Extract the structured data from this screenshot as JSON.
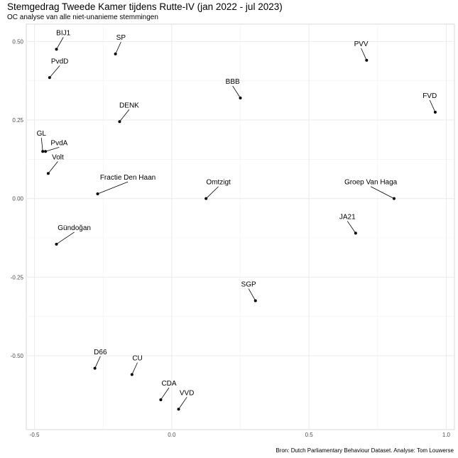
{
  "chart_data": {
    "type": "scatter",
    "title": "Stemgedrag Tweede Kamer tijdens Rutte-IV (jan 2022 - jul 2023)",
    "subtitle": "OC analyse van alle niet-unanieme stemmingen",
    "caption": "Bron: Dutch Parliamentary Behaviour Dataset. Analyse: Tom Louwerse",
    "xlabel": "",
    "ylabel": "",
    "xlim": [
      -0.53,
      1.03
    ],
    "ylim": [
      -0.735,
      0.555
    ],
    "x_ticks": [
      -0.5,
      0.0,
      0.5,
      1.0
    ],
    "x_tick_labels": [
      "-0.5",
      "0.0",
      "0.5",
      "1.0"
    ],
    "y_ticks": [
      -0.5,
      -0.25,
      0.0,
      0.25,
      0.5
    ],
    "y_tick_labels": [
      "-0.50",
      "-0.25",
      "0.00",
      "0.25",
      "0.50"
    ],
    "grid": true,
    "points": [
      {
        "label": "BIJ1",
        "x": -0.42,
        "y": 0.475,
        "lx": -0.395,
        "ly": 0.52,
        "anchor": "middle"
      },
      {
        "label": "SP",
        "x": -0.205,
        "y": 0.46,
        "lx": -0.185,
        "ly": 0.505,
        "anchor": "middle"
      },
      {
        "label": "PvdD",
        "x": -0.445,
        "y": 0.385,
        "lx": -0.408,
        "ly": 0.43,
        "anchor": "middle"
      },
      {
        "label": "PVV",
        "x": 0.71,
        "y": 0.44,
        "lx": 0.69,
        "ly": 0.485,
        "anchor": "middle"
      },
      {
        "label": "BBB",
        "x": 0.25,
        "y": 0.32,
        "lx": 0.222,
        "ly": 0.365,
        "anchor": "middle"
      },
      {
        "label": "FVD",
        "x": 0.96,
        "y": 0.275,
        "lx": 0.94,
        "ly": 0.32,
        "anchor": "middle"
      },
      {
        "label": "DENK",
        "x": -0.19,
        "y": 0.245,
        "lx": -0.155,
        "ly": 0.29,
        "anchor": "middle"
      },
      {
        "label": "GL",
        "x": -0.47,
        "y": 0.15,
        "lx": -0.475,
        "ly": 0.2,
        "anchor": "middle"
      },
      {
        "label": "PvdA",
        "x": -0.46,
        "y": 0.15,
        "lx": -0.41,
        "ly": 0.17,
        "anchor": "middle"
      },
      {
        "label": "Volt",
        "x": -0.45,
        "y": 0.08,
        "lx": -0.415,
        "ly": 0.125,
        "anchor": "middle"
      },
      {
        "label": "Fractie Den Haan",
        "x": -0.27,
        "y": 0.015,
        "lx": -0.16,
        "ly": 0.06,
        "anchor": "middle"
      },
      {
        "label": "Omtzigt",
        "x": 0.125,
        "y": 0.0,
        "lx": 0.17,
        "ly": 0.045,
        "anchor": "middle"
      },
      {
        "label": "Groep Van Haga",
        "x": 0.81,
        "y": 0.0,
        "lx": 0.725,
        "ly": 0.045,
        "anchor": "middle"
      },
      {
        "label": "JA21",
        "x": 0.67,
        "y": -0.11,
        "lx": 0.64,
        "ly": -0.065,
        "anchor": "middle"
      },
      {
        "label": "Gündoğan",
        "x": -0.42,
        "y": -0.145,
        "lx": -0.355,
        "ly": -0.1,
        "anchor": "middle"
      },
      {
        "label": "SGP",
        "x": 0.305,
        "y": -0.325,
        "lx": 0.28,
        "ly": -0.28,
        "anchor": "middle"
      },
      {
        "label": "D66",
        "x": -0.28,
        "y": -0.54,
        "lx": -0.26,
        "ly": -0.495,
        "anchor": "middle"
      },
      {
        "label": "CU",
        "x": -0.145,
        "y": -0.56,
        "lx": -0.125,
        "ly": -0.515,
        "anchor": "middle"
      },
      {
        "label": "CDA",
        "x": -0.04,
        "y": -0.64,
        "lx": -0.01,
        "ly": -0.595,
        "anchor": "middle"
      },
      {
        "label": "VVD",
        "x": 0.025,
        "y": -0.67,
        "lx": 0.055,
        "ly": -0.625,
        "anchor": "middle"
      }
    ]
  }
}
